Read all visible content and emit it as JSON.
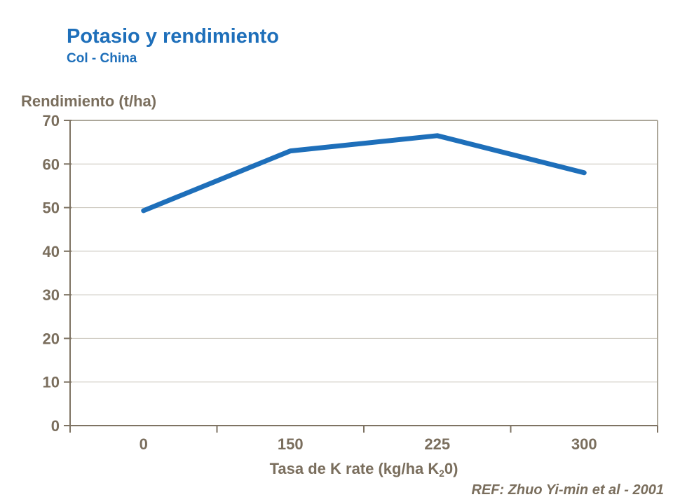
{
  "page": {
    "title": "Potasio y rendimiento",
    "subtitle": "Col - China",
    "reference": "REF: Zhuo Yi-min et al - 2001"
  },
  "chart_data": {
    "type": "line",
    "title": "Potasio y rendimiento",
    "subtitle": "Col - China",
    "categories": [
      "0",
      "150",
      "225",
      "300"
    ],
    "values": [
      49.3,
      63,
      66.5,
      58
    ],
    "series_name": "Rendimiento",
    "ylabel": "Rendimiento (t/ha)",
    "xlabel_prefix": "Tasa de K rate (kg/ha K",
    "xlabel_sub": "2",
    "xlabel_suffix": "0)",
    "ylim": [
      0,
      70
    ],
    "ytick_step": 10,
    "grid": true,
    "legend_position": "none",
    "reference": "REF: Zhuo Yi-min et al - 2001",
    "colors": {
      "line": "#1E6FBA",
      "title": "#1E6FBA",
      "text": "#7A6E5D",
      "axis": "#7E7363",
      "plot_border": "#ACA79A",
      "gridline": "#C8C3BA",
      "background": "#FFFFFF"
    }
  }
}
